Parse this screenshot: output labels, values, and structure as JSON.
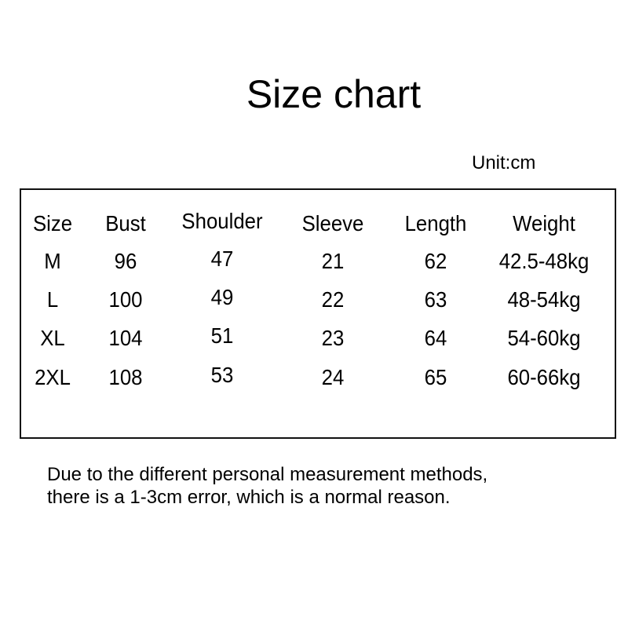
{
  "title": "Size chart",
  "unit": "Unit:cm",
  "table": {
    "headers": [
      "Size",
      "Bust",
      "Shoulder",
      "Sleeve",
      "Length",
      "Weight"
    ],
    "rows": [
      [
        "M",
        "96",
        "47",
        "21",
        "62",
        "42.5-48kg"
      ],
      [
        "L",
        "100",
        "49",
        "22",
        "63",
        "48-54kg"
      ],
      [
        "XL",
        "104",
        "51",
        "23",
        "64",
        "54-60kg"
      ],
      [
        "2XL",
        "108",
        "53",
        "24",
        "65",
        "60-66kg"
      ]
    ]
  },
  "note": {
    "line1": "Due to the different personal measurement methods,",
    "line2": "there is a 1-3cm error, which is a normal reason."
  }
}
